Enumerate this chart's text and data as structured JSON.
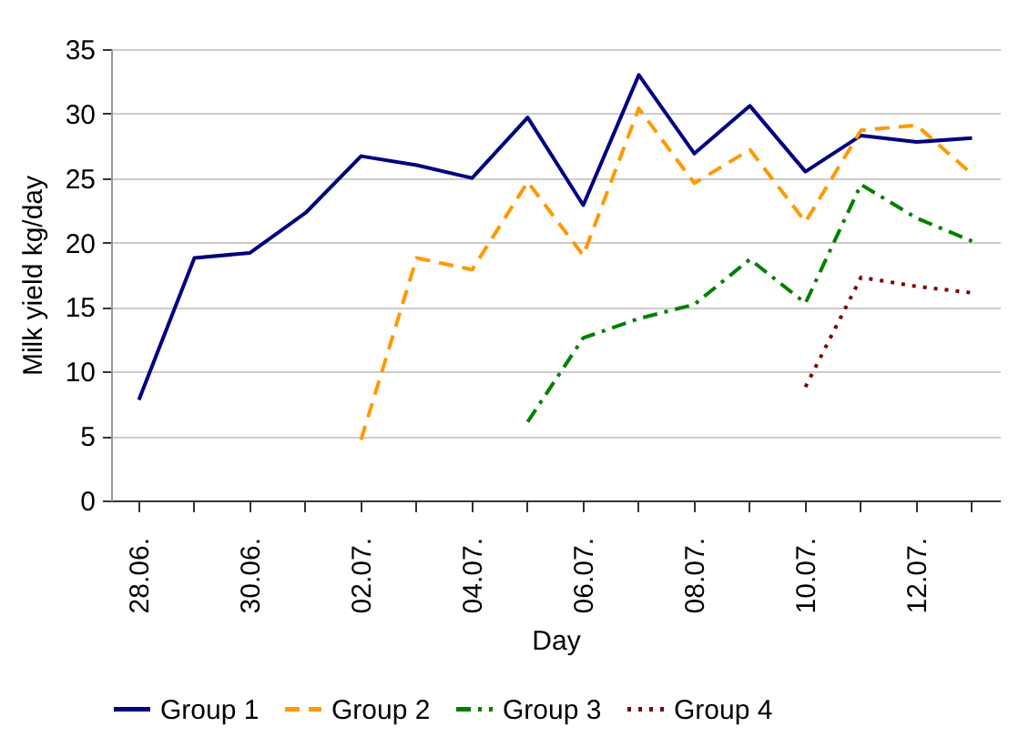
{
  "chart_data": {
    "type": "line",
    "xlabel": "Day",
    "ylabel": "Milk yield kg/day",
    "categories": [
      "28.06.",
      null,
      "30.06.",
      null,
      "02.07.",
      null,
      "04.07.",
      null,
      "06.07.",
      null,
      "08.07.",
      null,
      "10.07.",
      null,
      "12.07.",
      null
    ],
    "series": [
      {
        "name": "Group 1",
        "color": "#000080",
        "line_style": "solid",
        "values": [
          7.8,
          18.8,
          19.2,
          22.3,
          26.7,
          26.0,
          25.0,
          29.7,
          22.9,
          33.0,
          26.9,
          30.6,
          25.5,
          28.3,
          27.8,
          28.1
        ]
      },
      {
        "name": "Group 2",
        "color": "#ff9900",
        "line_style": "dashed",
        "values": [
          null,
          null,
          null,
          null,
          4.7,
          18.8,
          17.9,
          24.7,
          19.0,
          30.4,
          24.6,
          27.2,
          21.6,
          28.7,
          29.1,
          25.3
        ]
      },
      {
        "name": "Group 3",
        "color": "#008000",
        "line_style": "dashdot",
        "values": [
          null,
          null,
          null,
          null,
          null,
          null,
          null,
          6.1,
          12.6,
          14.1,
          15.2,
          18.7,
          15.3,
          24.5,
          21.9,
          20.1
        ]
      },
      {
        "name": "Group 4",
        "color": "#800000",
        "line_style": "dotted",
        "values": [
          null,
          null,
          null,
          null,
          null,
          null,
          null,
          null,
          null,
          null,
          null,
          null,
          8.8,
          17.3,
          16.6,
          16.1
        ]
      }
    ],
    "ylim": [
      0,
      35
    ],
    "yticks": [
      0,
      5,
      10,
      15,
      20,
      25,
      30,
      35
    ],
    "grid": "y",
    "legend": "bottom",
    "marker": "none"
  }
}
